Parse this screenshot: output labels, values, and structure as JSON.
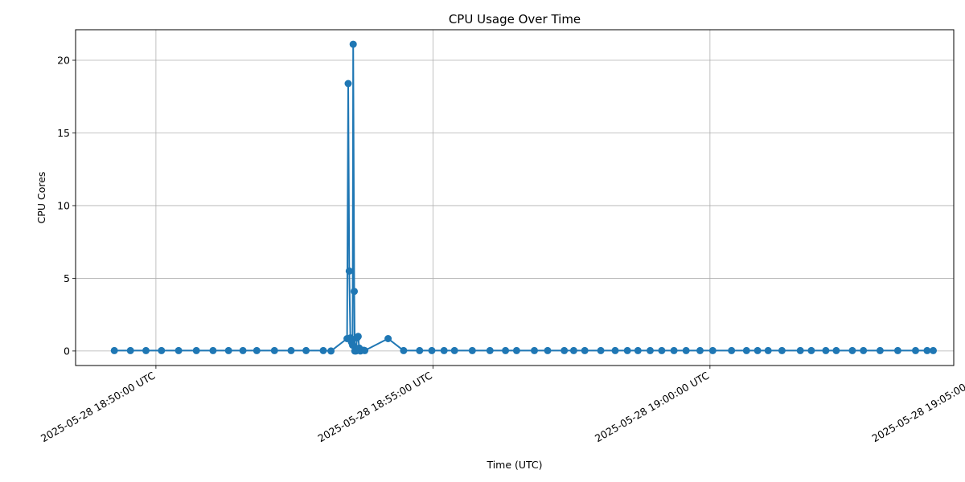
{
  "chart_data": {
    "type": "line",
    "title": "CPU Usage Over Time",
    "xlabel": "Time (UTC)",
    "ylabel": "CPU Cores",
    "x_time_start": "2025-05-28T18:49:15Z",
    "xlim_minutes": [
      -0.7,
      15.15
    ],
    "ylim": [
      -1.0,
      22.1
    ],
    "grid": true,
    "marker": "circle",
    "line_color": "#1f77b4",
    "y_ticks": [
      0,
      5,
      10,
      15,
      20
    ],
    "y_tick_labels": [
      "0",
      "5",
      "10",
      "15",
      "20"
    ],
    "x_ticks_minutes": [
      0.75,
      5.75,
      10.75,
      15.75
    ],
    "x_tick_labels": [
      "2025-05-28 18:50:00 UTC",
      "2025-05-28 18:55:00 UTC",
      "2025-05-28 19:00:00 UTC",
      "2025-05-28 19:05:00 UTC"
    ],
    "series": [
      {
        "name": "CPU Cores",
        "x_minutes": [
          0.0,
          0.29,
          0.57,
          0.85,
          1.16,
          1.48,
          1.78,
          2.06,
          2.32,
          2.57,
          2.89,
          3.19,
          3.46,
          3.77,
          3.91,
          4.2,
          4.22,
          4.24,
          4.26,
          4.28,
          4.3,
          4.3,
          4.31,
          4.33,
          4.34,
          4.36,
          4.38,
          4.4,
          4.42,
          4.44,
          4.46,
          4.5,
          4.52,
          4.94,
          5.22,
          5.51,
          5.73,
          5.95,
          6.14,
          6.46,
          6.78,
          7.06,
          7.26,
          7.58,
          7.82,
          8.12,
          8.29,
          8.49,
          8.78,
          9.04,
          9.26,
          9.45,
          9.67,
          9.88,
          10.1,
          10.32,
          10.57,
          10.8,
          11.14,
          11.41,
          11.61,
          11.8,
          12.05,
          12.38,
          12.58,
          12.84,
          13.03,
          13.32,
          13.52,
          13.82,
          14.14,
          14.46,
          14.67,
          14.78
        ],
        "values": [
          0.03,
          0.03,
          0.03,
          0.03,
          0.03,
          0.03,
          0.03,
          0.03,
          0.03,
          0.03,
          0.03,
          0.03,
          0.03,
          0.03,
          0.0,
          0.85,
          18.4,
          5.5,
          0.9,
          0.6,
          0.4,
          0.8,
          21.1,
          4.1,
          0.0,
          0.0,
          0.9,
          1.0,
          0.2,
          0.0,
          0.05,
          0.05,
          0.03,
          0.85,
          0.03,
          0.03,
          0.03,
          0.03,
          0.03,
          0.03,
          0.03,
          0.03,
          0.03,
          0.03,
          0.03,
          0.03,
          0.03,
          0.03,
          0.03,
          0.03,
          0.03,
          0.03,
          0.03,
          0.03,
          0.03,
          0.03,
          0.03,
          0.03,
          0.03,
          0.03,
          0.03,
          0.03,
          0.03,
          0.03,
          0.03,
          0.03,
          0.03,
          0.03,
          0.03,
          0.03,
          0.03,
          0.03,
          0.03,
          0.03
        ]
      }
    ]
  }
}
